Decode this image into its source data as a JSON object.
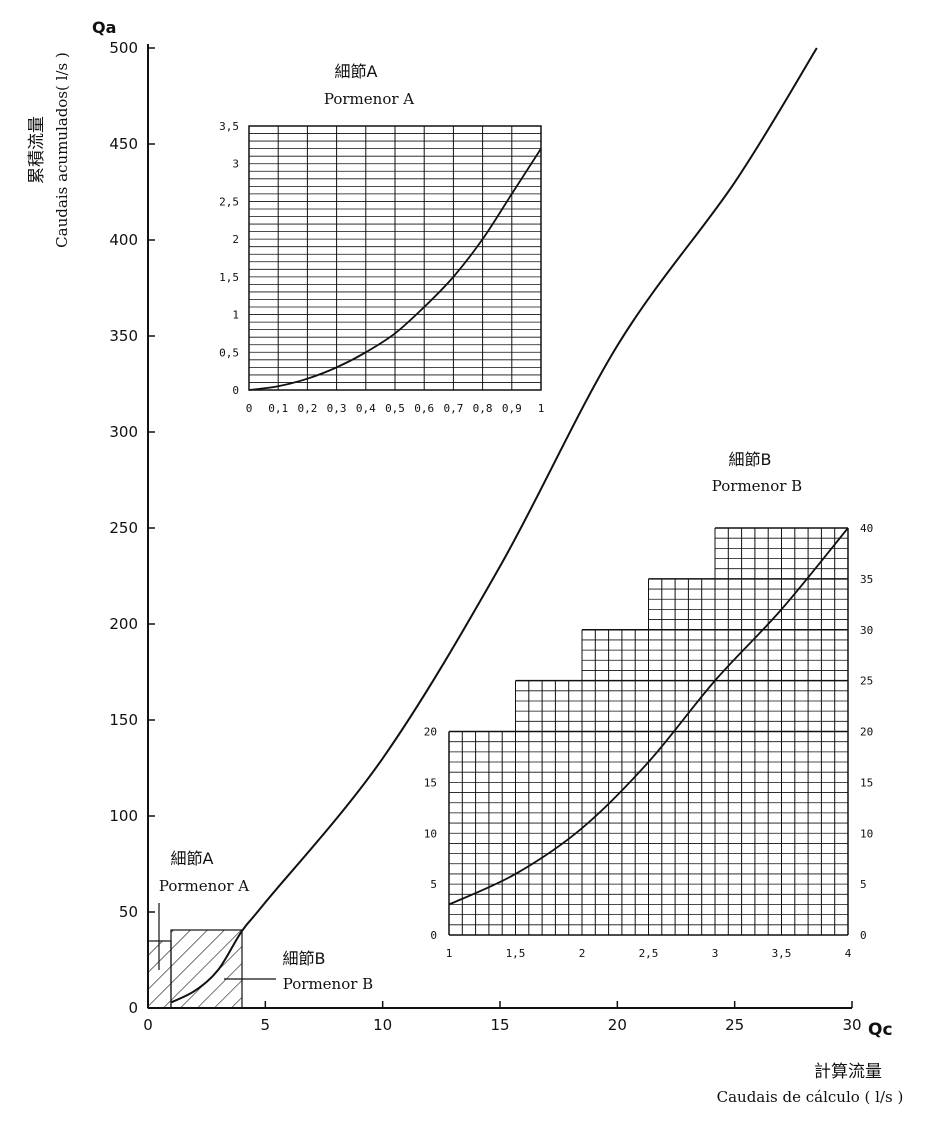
{
  "labels": {
    "y_symbol": "Qa",
    "y_title_cn": "累積流量",
    "y_title_pt": "Caudais acumulados( l/s )",
    "x_symbol": "Qc",
    "x_title_cn": "計算流量",
    "x_title_pt": "Caudais de cálculo ( l/s )",
    "detail_a_cn": "細節A",
    "detail_a_pt": "Pormenor A",
    "detail_b_cn": "細節B",
    "detail_b_pt": "Pormenor B",
    "marker_a_cn": "細節A",
    "marker_a_pt": "Pormenor A",
    "marker_b_cn": "細節B",
    "marker_b_pt": "Pormenor B"
  },
  "chart_data": [
    {
      "id": "main",
      "type": "line",
      "xlabel": "Qc",
      "ylabel": "Qa",
      "xlim": [
        0,
        30
      ],
      "ylim": [
        0,
        500
      ],
      "x_ticks": [
        "0",
        "5",
        "10",
        "15",
        "20",
        "25",
        "30"
      ],
      "y_ticks": [
        "0",
        "50",
        "100",
        "150",
        "200",
        "250",
        "300",
        "350",
        "400",
        "450",
        "500"
      ],
      "grid": false,
      "series": [
        {
          "x": [
            1,
            2,
            3,
            4,
            5,
            10,
            15,
            20,
            25,
            28.5
          ],
          "y": [
            3,
            9,
            20,
            40,
            55,
            130,
            230,
            345,
            430,
            500
          ]
        }
      ]
    },
    {
      "id": "detail_a",
      "type": "line",
      "xlim": [
        0,
        1
      ],
      "ylim": [
        0,
        3.5
      ],
      "x_ticks": [
        "0",
        "0,1",
        "0,2",
        "0,3",
        "0,4",
        "0,5",
        "0,6",
        "0,7",
        "0,8",
        "0,9",
        "1"
      ],
      "y_ticks": [
        "0",
        "0,5",
        "1",
        "1,5",
        "2",
        "2,5",
        "3",
        "3,5"
      ],
      "grid": true,
      "series": [
        {
          "x": [
            0,
            0.1,
            0.2,
            0.3,
            0.4,
            0.5,
            0.6,
            0.7,
            0.8,
            0.9,
            1
          ],
          "y": [
            0,
            0.05,
            0.15,
            0.3,
            0.5,
            0.75,
            1.1,
            1.5,
            2.0,
            2.6,
            3.2
          ]
        }
      ]
    },
    {
      "id": "detail_b",
      "type": "line",
      "xlim": [
        1,
        4
      ],
      "ylim": [
        0,
        40
      ],
      "x_ticks": [
        "1",
        "1,5",
        "2",
        "2,5",
        "3",
        "3,5",
        "4"
      ],
      "y_ticks_left": [
        "0",
        "5",
        "10",
        "15",
        "20"
      ],
      "y_ticks_right": [
        "0",
        "5",
        "10",
        "15",
        "20",
        "25",
        "30",
        "35",
        "40"
      ],
      "grid": true,
      "series": [
        {
          "x": [
            1,
            1.5,
            2,
            2.5,
            3,
            3.5,
            4
          ],
          "y": [
            3,
            6,
            10.5,
            17,
            25,
            32,
            40
          ]
        }
      ]
    }
  ]
}
